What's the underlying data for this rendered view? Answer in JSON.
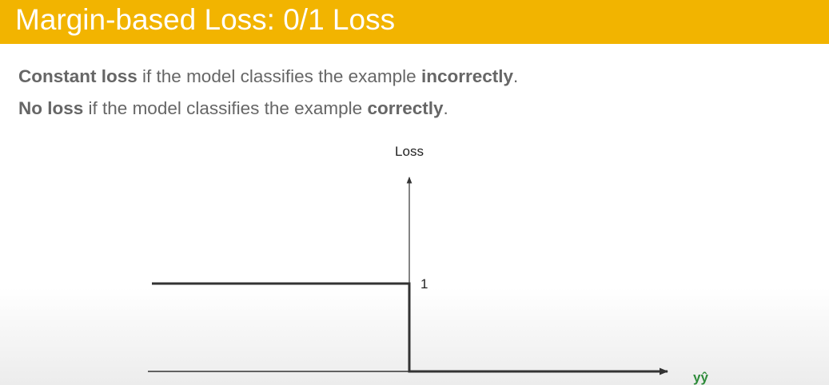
{
  "title": "Margin-based Loss: 0/1 Loss",
  "bullets": [
    {
      "bold1": "Constant loss",
      "text1": " if the model classifies the example ",
      "bold2": "incorrectly",
      "text2": "."
    },
    {
      "bold1": "No loss",
      "text1": " if the model classifies the example ",
      "bold2": "correctly",
      "text2": "."
    }
  ],
  "chart_data": {
    "type": "line",
    "title": "",
    "xlabel": "yŷ",
    "ylabel": "Loss",
    "yticks": [
      "1"
    ],
    "xlim": [
      -1,
      1
    ],
    "ylim": [
      0,
      2
    ],
    "series": [
      {
        "x": [
          -1,
          0,
          0,
          1
        ],
        "y": [
          1,
          1,
          0,
          0
        ]
      }
    ],
    "colors": {
      "line": "#333333",
      "axis": "#333333",
      "xlabel": "#2e8b3a"
    }
  }
}
